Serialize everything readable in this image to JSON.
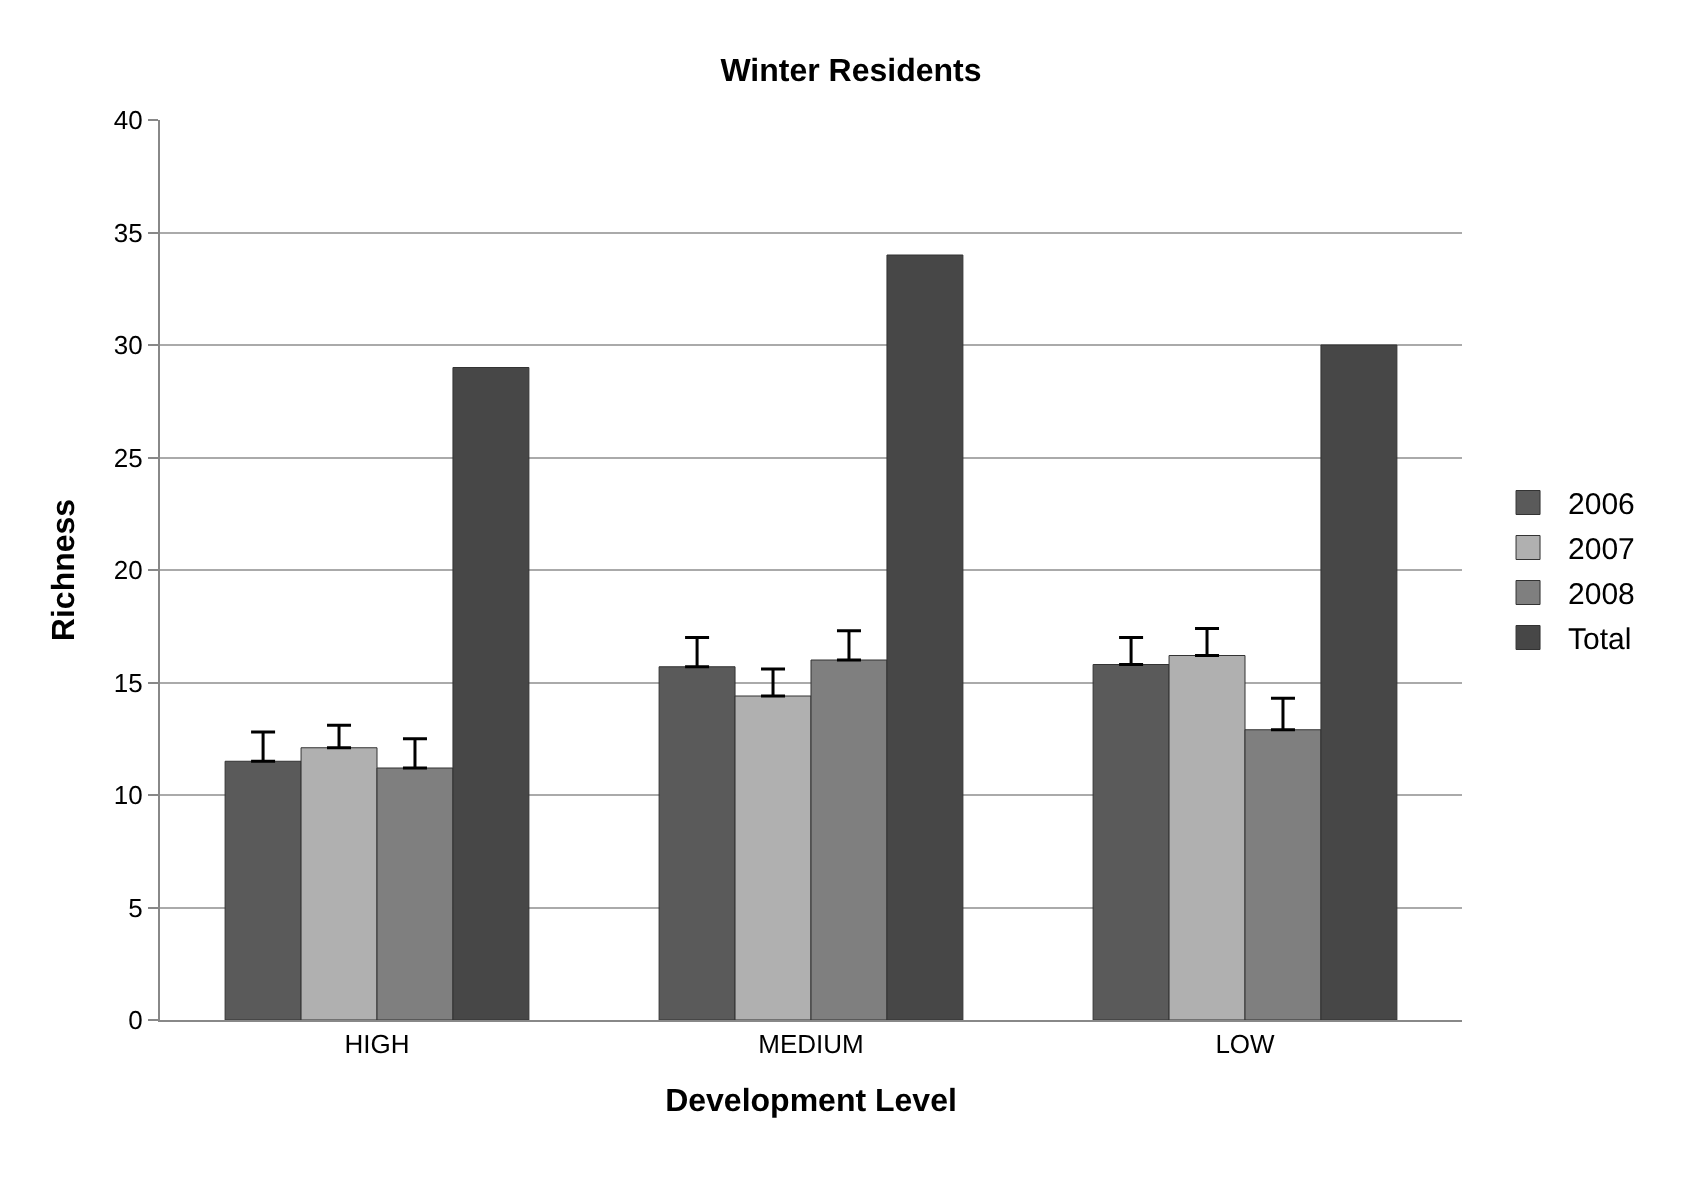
{
  "chart_data": {
    "type": "bar",
    "title": "Winter Residents",
    "xlabel": "Development Level",
    "ylabel": "Richness",
    "categories": [
      "HIGH",
      "MEDIUM",
      "LOW"
    ],
    "series": [
      {
        "name": "2006",
        "color": "#5a5a5a",
        "values": [
          11.5,
          15.7,
          15.8
        ],
        "errors": [
          [
            11.5,
            12.8
          ],
          [
            15.7,
            17.0
          ],
          [
            15.8,
            17.0
          ]
        ]
      },
      {
        "name": "2007",
        "color": "#b0b0b0",
        "values": [
          12.1,
          14.4,
          16.2
        ],
        "errors": [
          [
            12.1,
            13.1
          ],
          [
            14.4,
            15.6
          ],
          [
            16.2,
            17.4
          ]
        ]
      },
      {
        "name": "2008",
        "color": "#7f7f7f",
        "values": [
          11.2,
          16.0,
          12.9
        ],
        "errors": [
          [
            11.2,
            12.5
          ],
          [
            16.0,
            17.3
          ],
          [
            12.9,
            14.3
          ]
        ]
      },
      {
        "name": "Total",
        "color": "#474747",
        "values": [
          29,
          34,
          30
        ]
      }
    ],
    "ylim": [
      0,
      40
    ],
    "yticks": [
      0,
      5,
      10,
      15,
      20,
      25,
      30,
      35,
      40
    ],
    "grid": "y",
    "legend": "right"
  }
}
